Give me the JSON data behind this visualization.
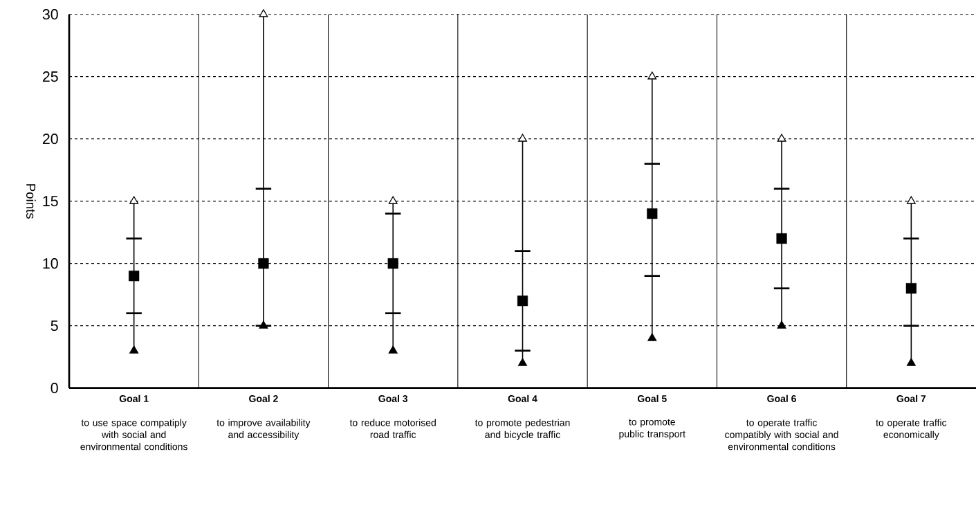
{
  "chart_data": {
    "type": "box",
    "ylabel": "Points",
    "categories": [
      "Goal 1",
      "Goal 2",
      "Goal 3",
      "Goal 4",
      "Goal 5",
      "Goal 6",
      "Goal 7"
    ],
    "annotations": [
      "to use space compatiply with social and environmental conditions",
      "to improve availability and accessibility",
      "to reduce motorised road traffic",
      "to promote pedestrian and bicycle traffic",
      "to promote public transport",
      "to operate traffic compatibly with social and environmental conditions",
      "to operate traffic economically"
    ],
    "boxes": [
      {
        "low": 3,
        "q1": 6,
        "median": 9,
        "q3": 12,
        "high": 15
      },
      {
        "low": 5,
        "q1": 5,
        "median": 10,
        "q3": 16,
        "high": 30
      },
      {
        "low": 3,
        "q1": 6,
        "median": 10,
        "q3": 14,
        "high": 15
      },
      {
        "low": 2,
        "q1": 3,
        "median": 7,
        "q3": 11,
        "high": 20
      },
      {
        "low": 4,
        "q1": 9,
        "median": 14,
        "q3": 18,
        "high": 25
      },
      {
        "low": 5,
        "q1": 8,
        "median": 12,
        "q3": 16,
        "high": 20
      },
      {
        "low": 2,
        "q1": 5,
        "median": 8,
        "q3": 12,
        "high": 15
      }
    ],
    "color": "#000000",
    "series": [
      {
        "type": "scatter",
        "color": "#ffffff",
        "marker": "triangle",
        "x": [
          "Goal 1",
          "Goal 2",
          "Goal 3",
          "Goal 4",
          "Goal 5",
          "Goal 6",
          "Goal 7"
        ],
        "values": [
          15,
          30,
          15,
          20,
          25,
          20,
          15
        ]
      },
      {
        "type": "scatter",
        "color": "#000000",
        "marker": "triangle",
        "x": [
          "Goal 1",
          "Goal 2",
          "Goal 3",
          "Goal 4",
          "Goal 5",
          "Goal 6",
          "Goal 7"
        ],
        "values": [
          3,
          5,
          3,
          2,
          4,
          5,
          2
        ]
      }
    ],
    "ylim": [
      0,
      30
    ],
    "yticks": [
      0,
      5,
      10,
      15,
      20,
      25,
      30
    ],
    "grid": true
  }
}
